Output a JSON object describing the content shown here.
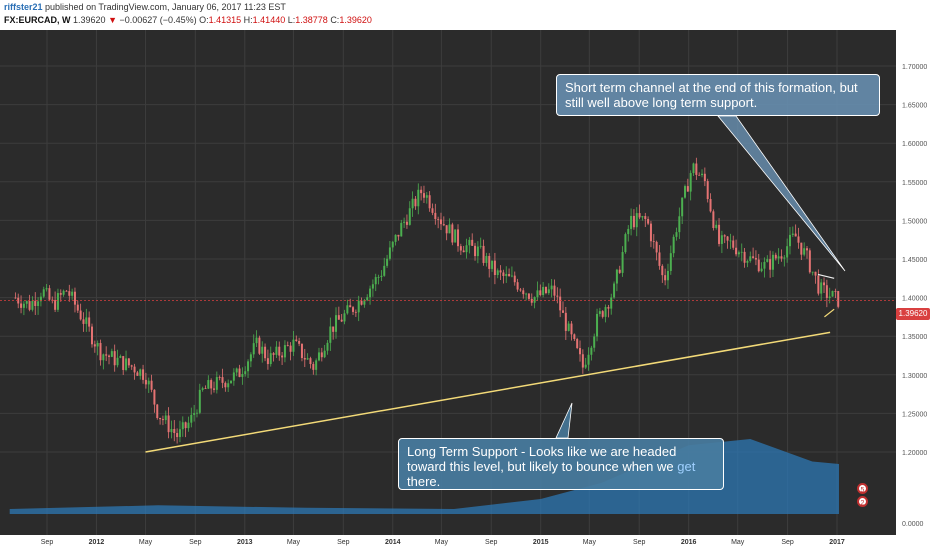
{
  "header": {
    "author": "riffster21",
    "published": " published on TradingView.com, January 06, 2017 11:23 EST",
    "symbol": "FX:EURCAD, W",
    "last": "1.39620",
    "arrow": "▼",
    "change": "−0.00627 (−0.45%)",
    "o_label": "O:",
    "o_value": "1.41315",
    "h_label": "H:",
    "h_value": "1.41440",
    "l_label": "L:",
    "l_value": "1.38778",
    "c_label": "C:",
    "c_value": "1.39620"
  },
  "annotations": {
    "top_text": "Short term channel at the end of this formation, but still well above long term support.",
    "bottom_text": "Long Term Support - Looks like we are headed toward this level, but likely to bounce when we ",
    "bottom_highlight": "get",
    "bottom_tail": " there."
  },
  "price_badge": "1.39620",
  "event_markers": [
    "5",
    "2"
  ],
  "colors": {
    "background": "#2b2b2b",
    "grid": "#3d3d3d",
    "up": "#4caf50",
    "down": "#e57373",
    "volume": "#2e78b4",
    "trendline": "#f3da78",
    "price_line": "#d94040"
  },
  "chart_data": {
    "type": "candlestick",
    "title": "",
    "xlabel": "",
    "ylabel": "",
    "ylim": [
      1.18,
      1.73
    ],
    "y_ticks": [
      "1.70000",
      "1.65000",
      "1.60000",
      "1.55000",
      "1.50000",
      "1.45000",
      "1.40000",
      "1.35000",
      "1.30000",
      "1.25000",
      "1.20000"
    ],
    "volume_tick": "0.0000",
    "x_ticks": [
      "Sep",
      "2012",
      "May",
      "Sep",
      "2013",
      "May",
      "Sep",
      "2014",
      "May",
      "Sep",
      "2015",
      "May",
      "Sep",
      "2016",
      "May",
      "Sep",
      "2017"
    ],
    "x_tick_dates": [
      "2011-09",
      "2012-01",
      "2012-05",
      "2012-09",
      "2013-01",
      "2013-05",
      "2013-09",
      "2014-01",
      "2014-05",
      "2014-09",
      "2015-01",
      "2015-05",
      "2015-09",
      "2016-01",
      "2016-05",
      "2016-09",
      "2017-01"
    ],
    "price_path": [
      [
        "2011-06-15",
        1.4
      ],
      [
        "2011-07-20",
        1.39
      ],
      [
        "2011-08-20",
        1.41
      ],
      [
        "2011-09-15",
        1.39
      ],
      [
        "2011-10-20",
        1.41
      ],
      [
        "2011-12-01",
        1.37
      ],
      [
        "2012-01-10",
        1.33
      ],
      [
        "2012-02-15",
        1.32
      ],
      [
        "2012-04-01",
        1.31
      ],
      [
        "2012-05-01",
        1.3
      ],
      [
        "2012-06-01",
        1.25
      ],
      [
        "2012-07-20",
        1.22
      ],
      [
        "2012-08-20",
        1.24
      ],
      [
        "2012-09-20",
        1.28
      ],
      [
        "2012-11-01",
        1.29
      ],
      [
        "2012-12-15",
        1.3
      ],
      [
        "2013-02-01",
        1.34
      ],
      [
        "2013-03-01",
        1.32
      ],
      [
        "2013-05-01",
        1.34
      ],
      [
        "2013-06-20",
        1.31
      ],
      [
        "2013-08-01",
        1.36
      ],
      [
        "2013-10-01",
        1.39
      ],
      [
        "2013-12-01",
        1.43
      ],
      [
        "2014-01-20",
        1.49
      ],
      [
        "2014-03-15",
        1.54
      ],
      [
        "2014-05-01",
        1.5
      ],
      [
        "2014-06-15",
        1.47
      ],
      [
        "2014-08-01",
        1.46
      ],
      [
        "2014-09-15",
        1.43
      ],
      [
        "2014-11-01",
        1.42
      ],
      [
        "2014-12-15",
        1.4
      ],
      [
        "2015-02-01",
        1.41
      ],
      [
        "2015-03-15",
        1.35
      ],
      [
        "2015-04-15",
        1.31
      ],
      [
        "2015-05-20",
        1.37
      ],
      [
        "2015-07-01",
        1.41
      ],
      [
        "2015-08-10",
        1.5
      ],
      [
        "2015-09-20",
        1.5
      ],
      [
        "2015-11-01",
        1.42
      ],
      [
        "2015-12-01",
        1.49
      ],
      [
        "2016-01-10",
        1.57
      ],
      [
        "2016-02-10",
        1.55
      ],
      [
        "2016-03-15",
        1.47
      ],
      [
        "2016-04-15",
        1.47
      ],
      [
        "2016-06-01",
        1.45
      ],
      [
        "2016-07-10",
        1.44
      ],
      [
        "2016-08-20",
        1.46
      ],
      [
        "2016-09-20",
        1.48
      ],
      [
        "2016-10-20",
        1.45
      ],
      [
        "2016-11-20",
        1.41
      ],
      [
        "2017-01-06",
        1.3962
      ]
    ],
    "volume_path": [
      [
        "2011-06-01",
        4
      ],
      [
        "2012-06-01",
        7
      ],
      [
        "2013-06-01",
        5
      ],
      [
        "2014-06-01",
        4
      ],
      [
        "2015-01-01",
        12
      ],
      [
        "2015-06-01",
        25
      ],
      [
        "2016-01-01",
        55
      ],
      [
        "2016-06-01",
        60
      ],
      [
        "2016-11-01",
        42
      ],
      [
        "2017-01-06",
        40
      ]
    ],
    "long_term_support": [
      [
        "2012-05-01",
        1.2
      ],
      [
        "2016-12-15",
        1.355
      ]
    ],
    "channel_upper": [
      [
        "2016-11-15",
        1.43
      ],
      [
        "2016-12-25",
        1.425
      ]
    ],
    "channel_lower": [
      [
        "2016-12-01",
        1.375
      ],
      [
        "2016-12-25",
        1.385
      ]
    ],
    "last_price": 1.3962
  }
}
